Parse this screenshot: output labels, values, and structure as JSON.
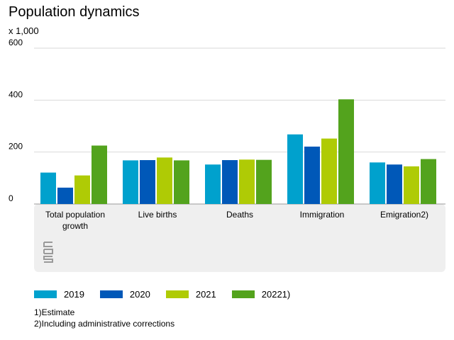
{
  "chart_data": {
    "type": "bar",
    "title": "Population dynamics",
    "ylabel": "x 1,000",
    "xlabel": "",
    "ylim": [
      0,
      600
    ],
    "yticks": [
      0,
      200,
      400,
      600
    ],
    "grid": true,
    "legend_position": "bottom",
    "categories": [
      [
        "Total population",
        "growth"
      ],
      [
        "Live births"
      ],
      [
        "Deaths"
      ],
      [
        "Immigration"
      ],
      [
        "Emigration2)"
      ]
    ],
    "series": [
      {
        "name": "2019",
        "color": "#00a1cd",
        "values": [
          121,
          168,
          152,
          268,
          160
        ]
      },
      {
        "name": "2020",
        "color": "#0058b8",
        "values": [
          63,
          169,
          169,
          221,
          152
        ]
      },
      {
        "name": "2021",
        "color": "#afcb05",
        "values": [
          110,
          179,
          171,
          252,
          145
        ]
      },
      {
        "name": "20221)",
        "color": "#53a31d",
        "values": [
          225,
          168,
          170,
          403,
          173
        ]
      }
    ]
  },
  "footnotes": [
    "1)Estimate",
    "2)Including administrative corrections"
  ],
  "logo_text": "cbs"
}
